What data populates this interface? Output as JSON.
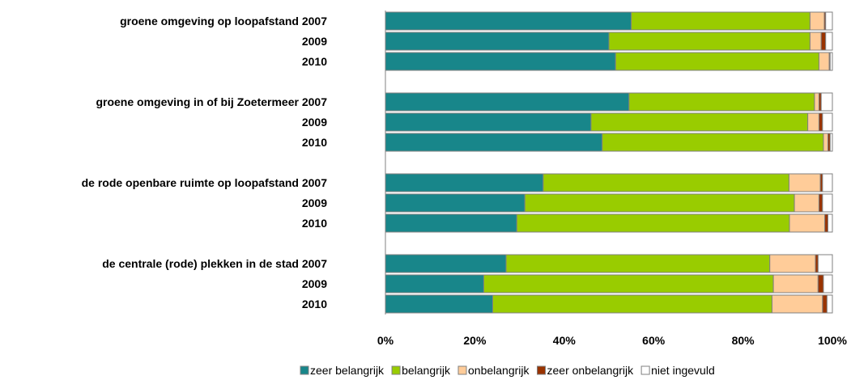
{
  "chart_data": {
    "type": "bar",
    "orientation": "horizontal",
    "stacked": true,
    "percent": true,
    "xlim": [
      0,
      100
    ],
    "x_ticks": [
      "0%",
      "20%",
      "40%",
      "60%",
      "80%",
      "100%"
    ],
    "grid": false,
    "legend_position": "bottom",
    "groups": [
      {
        "label": "groene omgeving op loopafstand",
        "rows": [
          {
            "year": "2007",
            "values": [
              55,
              40,
              3.2,
              0.3,
              1.5
            ]
          },
          {
            "year": "2009",
            "values": [
              50,
              45,
              2.5,
              1,
              1.5
            ]
          },
          {
            "year": "2010",
            "values": [
              51.5,
              45.5,
              2.3,
              0.2,
              0.5
            ]
          }
        ]
      },
      {
        "label": "groene omgeving in of bij Zoetermeer",
        "rows": [
          {
            "year": "2007",
            "values": [
              54.5,
              41.5,
              1,
              0.5,
              2.5
            ]
          },
          {
            "year": "2009",
            "values": [
              46,
              48.5,
              2.5,
              0.8,
              2.2
            ]
          },
          {
            "year": "2010",
            "values": [
              48.5,
              49.5,
              1,
              0.5,
              0.5
            ]
          }
        ]
      },
      {
        "label": "de rode openbare ruimte op loopafstand",
        "rows": [
          {
            "year": "2007",
            "values": [
              35.3,
              55,
              7,
              0.5,
              2.2
            ]
          },
          {
            "year": "2009",
            "values": [
              31.2,
              60.3,
              5.5,
              0.8,
              2.2
            ]
          },
          {
            "year": "2010",
            "values": [
              29.4,
              61,
              7.9,
              0.7,
              1
            ]
          }
        ]
      },
      {
        "label": "de centrale (rode) plekken in de stad",
        "rows": [
          {
            "year": "2007",
            "values": [
              27,
              59,
              10.2,
              0.6,
              3.2
            ]
          },
          {
            "year": "2009",
            "values": [
              22,
              64.8,
              10,
              1.2,
              2
            ]
          },
          {
            "year": "2010",
            "values": [
              24,
              62.5,
              11.3,
              1,
              1.2
            ]
          }
        ]
      }
    ],
    "series": [
      {
        "name": "zeer belangrijk",
        "color": "#18868A"
      },
      {
        "name": "belangrijk",
        "color": "#99CC00"
      },
      {
        "name": "onbelangrijk",
        "color": "#FFCC99"
      },
      {
        "name": "zeer onbelangrijk",
        "color": "#993300"
      },
      {
        "name": "niet ingevuld",
        "color": "#FFFFFF"
      }
    ]
  }
}
